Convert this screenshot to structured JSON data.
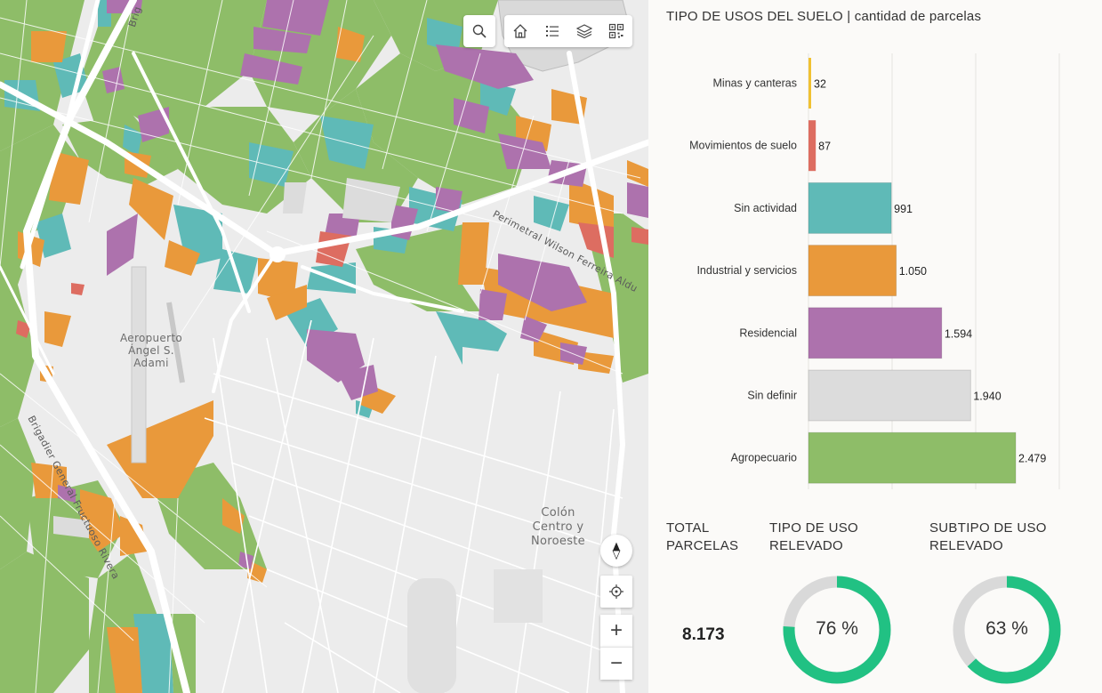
{
  "map": {
    "labels": {
      "airport": "Aeropuerto\nÁngel S.\nAdami",
      "district": "Colón\nCentro y\nNoroeste",
      "road_rivera": "Brigadier General Fructuoso Rivera",
      "road_perimetral": "Perimetral Wilson Ferreira Aldu",
      "road_brig_top": "Brig"
    },
    "toolbar": {
      "search_icon": "search-icon",
      "home_icon": "home-icon",
      "legend_icon": "legend-list-icon",
      "layers_icon": "layers-icon",
      "qr_icon": "qr-code-icon"
    },
    "controls": {
      "compass_icon": "compass-icon",
      "locate_icon": "locate-icon",
      "zoom_in_label": "+",
      "zoom_out_label": "−"
    }
  },
  "panel": {
    "title_main": "TIPO DE USOS DEL SUELO",
    "title_sep": " | ",
    "title_sub": "cantidad de parcelas",
    "kpis": {
      "total_heading": "TOTAL\nPARCELAS",
      "total_value": "8.173",
      "tipo_heading": "TIPO DE USO\nRELEVADO",
      "tipo_percent": 76,
      "tipo_label": "76 %",
      "subtipo_heading": "SUBTIPO DE USO\nRELEVADO",
      "subtipo_percent": 63,
      "subtipo_label": "63 %"
    }
  },
  "colors": {
    "agropecuario": "#8ebd68",
    "sin_definir": "#dcdcdc",
    "residencial": "#ad72ad",
    "industrial": "#e9993b",
    "sin_actividad": "#5fbab7",
    "movimientos": "#dd6d61",
    "minas": "#f0c132",
    "donut_fill": "#21c183",
    "donut_track": "#d9d9d9"
  },
  "chart_data": {
    "type": "bar",
    "orientation": "horizontal",
    "title": "TIPO DE USOS DEL SUELO | cantidad de parcelas",
    "categories": [
      "Minas y canteras",
      "Movimientos de suelo",
      "Sin actividad",
      "Industrial y servicios",
      "Residencial",
      "Sin definir",
      "Agropecuario"
    ],
    "values": [
      32,
      87,
      991,
      1050,
      1594,
      1940,
      2479
    ],
    "value_labels": [
      "32",
      "87",
      "991",
      "1.050",
      "1.594",
      "1.940",
      "2.479"
    ],
    "bar_colors": [
      "#f0c132",
      "#dd6d61",
      "#5fbab7",
      "#e9993b",
      "#ad72ad",
      "#dcdcdc",
      "#8ebd68"
    ],
    "xlim": [
      0,
      3000
    ],
    "grid": true,
    "legend": "none"
  }
}
